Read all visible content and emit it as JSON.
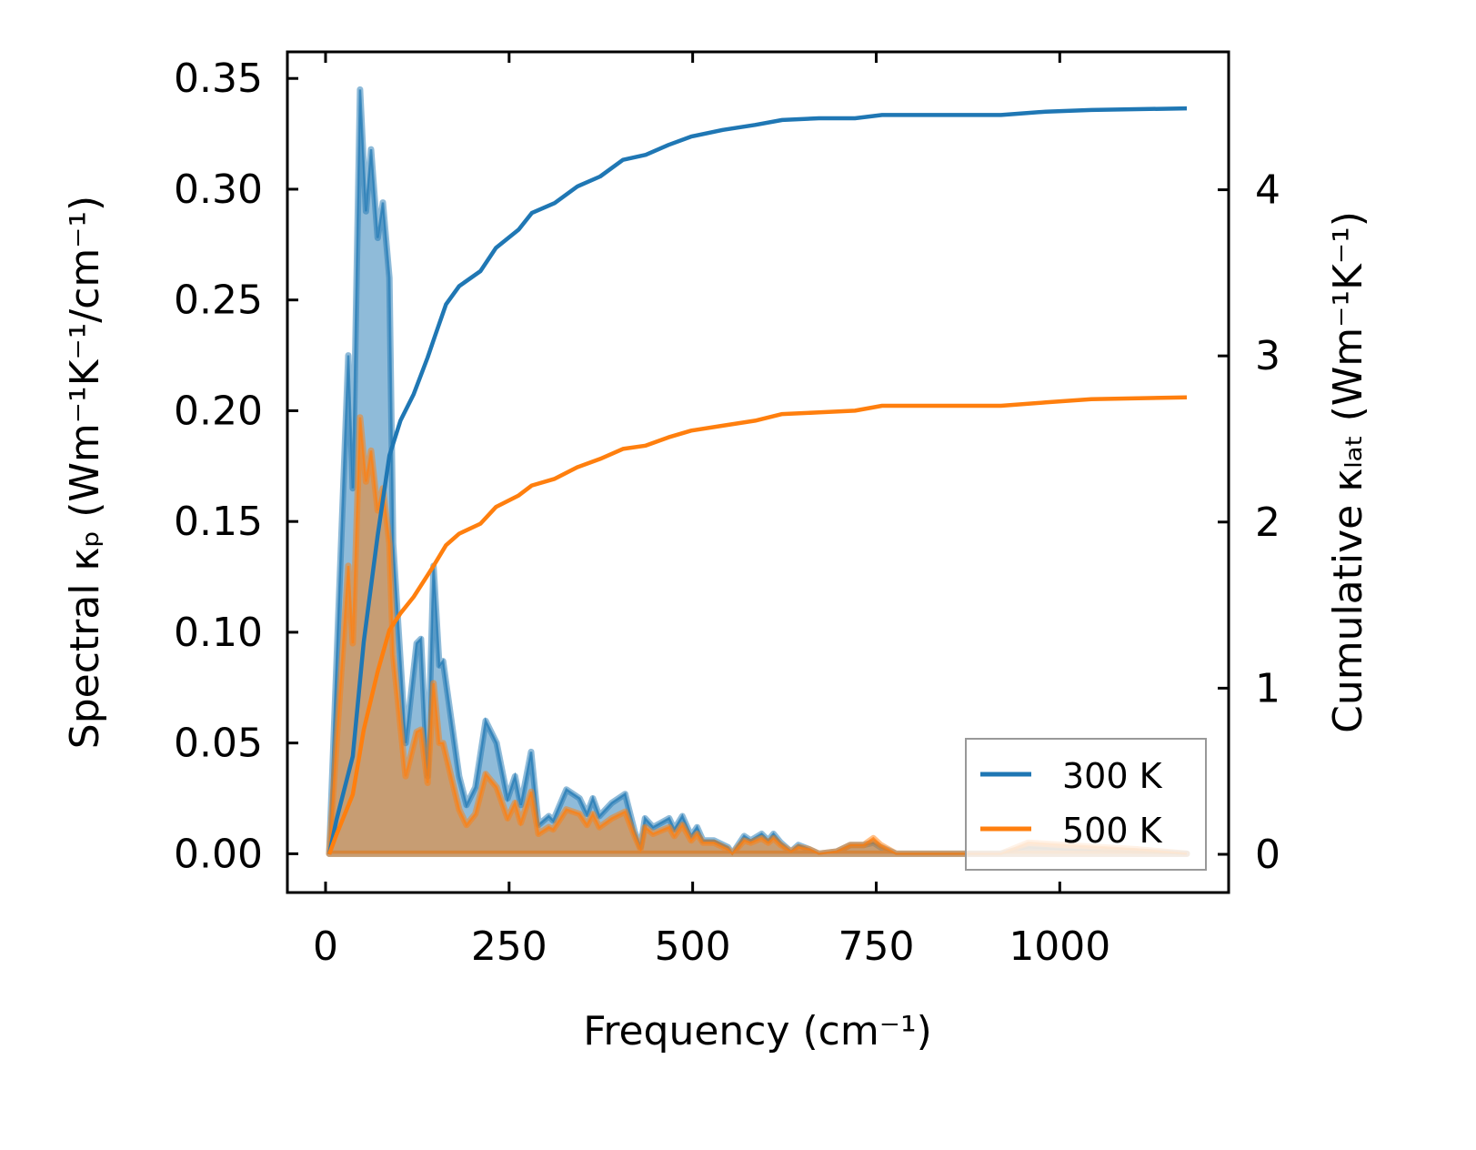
{
  "chart_data": {
    "type": "line",
    "xlabel": "Frequency (cm⁻¹)",
    "ylabel_left": "Spectral κₚ (Wm⁻¹K⁻¹/cm⁻¹)",
    "ylabel_right": "Cumulative κₗₐₜ (Wm⁻¹K⁻¹)",
    "xlim": [
      -52,
      1230
    ],
    "ylim_left": [
      -0.0175,
      0.362
    ],
    "ylim_right": [
      -0.23,
      4.83
    ],
    "xticks": [
      0,
      250,
      500,
      750,
      1000
    ],
    "xtick_labels": [
      "0",
      "250",
      "500",
      "750",
      "1000"
    ],
    "yticks_left": [
      0,
      0.05,
      0.1,
      0.15,
      0.2,
      0.25,
      0.3,
      0.35
    ],
    "ytick_labels_left": [
      "0.00",
      "0.05",
      "0.10",
      "0.15",
      "0.20",
      "0.25",
      "0.30",
      "0.35"
    ],
    "yticks_right": [
      0,
      1,
      2,
      3,
      4
    ],
    "ytick_labels_right": [
      "0",
      "1",
      "2",
      "3",
      "4"
    ],
    "grid": false,
    "legend_position": "bottom-right",
    "legend": [
      "300 K",
      "500 K"
    ],
    "colors": {
      "300 K": "#1f77b4",
      "500 K": "#ff7f0e"
    },
    "spectral": {
      "x": [
        5,
        31,
        37,
        47,
        55,
        62,
        71,
        78,
        87,
        92,
        109,
        124,
        130,
        139,
        147,
        155,
        160,
        182,
        192,
        204,
        218,
        233,
        248,
        258,
        266,
        280,
        290,
        304,
        310,
        328,
        346,
        356,
        364,
        373,
        390,
        408,
        421,
        429,
        435,
        446,
        468,
        475,
        486,
        498,
        506,
        514,
        529,
        548,
        554,
        570,
        579,
        594,
        603,
        610,
        620,
        634,
        644,
        659,
        672,
        696,
        715,
        733,
        746,
        756,
        777,
        920,
        957,
        1006,
        1105,
        1173
      ],
      "series": [
        {
          "name": "300 K",
          "values": [
            0,
            0.225,
            0.165,
            0.345,
            0.29,
            0.318,
            0.278,
            0.294,
            0.26,
            0.14,
            0.05,
            0.095,
            0.097,
            0.035,
            0.13,
            0.085,
            0.087,
            0.035,
            0.022,
            0.03,
            0.06,
            0.05,
            0.025,
            0.035,
            0.022,
            0.046,
            0.013,
            0.017,
            0.015,
            0.029,
            0.025,
            0.018,
            0.025,
            0.017,
            0.023,
            0.027,
            0.01,
            0.003,
            0.016,
            0.012,
            0.016,
            0.011,
            0.017,
            0.008,
            0.012,
            0.006,
            0.006,
            0.003,
            0,
            0.008,
            0.006,
            0.009,
            0.006,
            0.009,
            0.005,
            0.001,
            0.004,
            0.002,
            0,
            0.001,
            0.004,
            0.004,
            0.005,
            0.003,
            0,
            0,
            0.003,
            0.002,
            0.001,
            0
          ]
        },
        {
          "name": "500 K",
          "values": [
            0,
            0.13,
            0.095,
            0.197,
            0.168,
            0.182,
            0.155,
            0.165,
            0.14,
            0.09,
            0.035,
            0.055,
            0.056,
            0.032,
            0.077,
            0.05,
            0.05,
            0.02,
            0.013,
            0.018,
            0.036,
            0.03,
            0.016,
            0.023,
            0.014,
            0.028,
            0.009,
            0.012,
            0.011,
            0.02,
            0.018,
            0.013,
            0.018,
            0.012,
            0.016,
            0.019,
            0.008,
            0.002,
            0.012,
            0.009,
            0.012,
            0.008,
            0.013,
            0.006,
            0.009,
            0.005,
            0.005,
            0.002,
            0,
            0.006,
            0.005,
            0.007,
            0.005,
            0.007,
            0.004,
            0.001,
            0.003,
            0.002,
            0,
            0.001,
            0.004,
            0.004,
            0.007,
            0.004,
            0,
            0,
            0.005,
            0.004,
            0.002,
            0
          ]
        }
      ]
    },
    "cumulative": {
      "x": [
        5,
        15,
        37,
        52,
        71,
        87,
        102,
        120,
        139,
        149,
        164,
        182,
        211,
        232,
        263,
        281,
        312,
        343,
        374,
        405,
        436,
        467,
        498,
        541,
        585,
        622,
        672,
        721,
        758,
        920,
        981,
        1043,
        1173
      ],
      "series": [
        {
          "name": "300 K",
          "values": [
            0,
            0.21,
            0.59,
            1.28,
            1.92,
            2.4,
            2.61,
            2.77,
            2.99,
            3.12,
            3.31,
            3.42,
            3.51,
            3.65,
            3.76,
            3.86,
            3.92,
            4.02,
            4.08,
            4.18,
            4.21,
            4.27,
            4.32,
            4.36,
            4.39,
            4.42,
            4.43,
            4.43,
            4.45,
            4.45,
            4.47,
            4.48,
            4.49
          ]
        },
        {
          "name": "500 K",
          "values": [
            0,
            0.12,
            0.36,
            0.75,
            1.1,
            1.35,
            1.45,
            1.55,
            1.68,
            1.75,
            1.86,
            1.93,
            1.99,
            2.09,
            2.16,
            2.22,
            2.26,
            2.33,
            2.38,
            2.44,
            2.46,
            2.51,
            2.55,
            2.58,
            2.61,
            2.65,
            2.66,
            2.67,
            2.7,
            2.7,
            2.72,
            2.74,
            2.75
          ]
        }
      ]
    }
  }
}
